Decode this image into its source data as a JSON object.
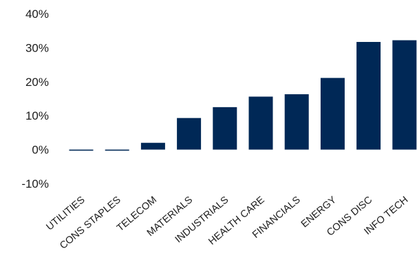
{
  "chart_data": {
    "type": "bar",
    "categories": [
      "UTILITIES",
      "CONS STAPLES",
      "TELECOM",
      "MATERIALS",
      "INDUSTRIALS",
      "HEALTH CARE",
      "FINANCIALS",
      "ENERGY",
      "CONS DISC",
      "INFO TECH"
    ],
    "values": [
      -0.3,
      -0.2,
      2.0,
      9.3,
      12.5,
      15.6,
      16.3,
      21.1,
      31.7,
      32.2
    ],
    "y_ticks": [
      "40%",
      "30%",
      "20%",
      "10%",
      "0%",
      "-10%"
    ],
    "y_tick_values": [
      40,
      30,
      20,
      10,
      0,
      -10
    ],
    "ylim": [
      -10,
      40
    ],
    "bar_color": "#002856",
    "grid": false,
    "legend": false
  }
}
